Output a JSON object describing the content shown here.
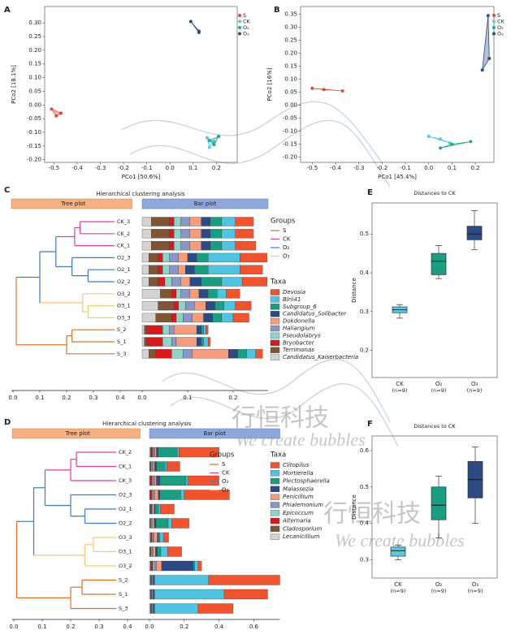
{
  "watermark": {
    "cn": "行恒科技",
    "en": "We create bubbles"
  },
  "chart_data": [
    {
      "type": "scatter",
      "label": "A",
      "xlabel": "PCo1 [50.6%]",
      "ylabel": "PCo2 [18.1%]",
      "xlim": [
        -0.54,
        0.29
      ],
      "ylim": [
        -0.21,
        0.36
      ],
      "xticks": [
        -0.5,
        -0.4,
        -0.3,
        -0.2,
        -0.1,
        {
          "value": 0,
          "label": "0.0"
        },
        0.1,
        0.2
      ],
      "yticks": [
        {
          "value": 0.3,
          "label": "0.30"
        },
        0.25,
        {
          "value": 0.2,
          "label": "0.20"
        },
        0.15,
        {
          "value": 0.1,
          "label": "0.10"
        },
        0.05,
        {
          "value": 0,
          "label": "0.00"
        },
        -0.05,
        {
          "value": -0.1,
          "label": "-0.10"
        },
        -0.15,
        {
          "value": -0.2,
          "label": "-0.20"
        }
      ],
      "series": [
        {
          "name": "S",
          "color": "#e8472f",
          "x": [
            -0.51,
            -0.49,
            -0.47
          ],
          "y": [
            -0.015,
            -0.04,
            -0.03
          ]
        },
        {
          "name": "CK",
          "color": "#5bc8e0",
          "x": [
            0.16,
            0.17,
            0.19
          ],
          "y": [
            -0.12,
            -0.155,
            -0.135
          ]
        },
        {
          "name": "O₂",
          "color": "#20a98c",
          "x": [
            0.17,
            0.19,
            0.21
          ],
          "y": [
            -0.13,
            -0.145,
            -0.115
          ]
        },
        {
          "name": "O₃",
          "color": "#2b4b8a",
          "x": [
            0.09,
            0.125,
            0.125
          ],
          "y": [
            0.305,
            0.27,
            0.265
          ]
        }
      ]
    },
    {
      "type": "scatter",
      "label": "B",
      "xlabel": "PCo1 [45.4%]",
      "ylabel": "PCo2 [16%]",
      "xlim": [
        -0.55,
        0.28
      ],
      "ylim": [
        -0.22,
        0.38
      ],
      "xticks": [
        -0.5,
        -0.4,
        -0.3,
        -0.2,
        -0.1,
        {
          "value": 0,
          "label": "0.0"
        },
        0.1,
        0.2
      ],
      "yticks": [
        0.35,
        {
          "value": 0.3,
          "label": "0.30"
        },
        0.25,
        {
          "value": 0.2,
          "label": "0.20"
        },
        0.15,
        {
          "value": 0.1,
          "label": "0.10"
        },
        0.05,
        {
          "value": 0,
          "label": "0.00"
        },
        -0.05,
        {
          "value": -0.1,
          "label": "-0.10"
        },
        -0.15,
        {
          "value": -0.2,
          "label": "-0.20"
        }
      ],
      "series": [
        {
          "name": "S",
          "color": "#e8472f",
          "x": [
            -0.5,
            -0.45,
            -0.37
          ],
          "y": [
            0.065,
            0.06,
            0.055
          ]
        },
        {
          "name": "CK",
          "color": "#5bc8e0",
          "x": [
            0,
            0.05,
            0.09
          ],
          "y": [
            -0.12,
            -0.13,
            -0.145
          ]
        },
        {
          "name": "O₂",
          "color": "#20a98c",
          "x": [
            0.05,
            0.1,
            0.18
          ],
          "y": [
            -0.165,
            -0.15,
            -0.14
          ]
        },
        {
          "name": "O₃",
          "color": "#2b4b8a",
          "x": [
            0.23,
            0.255,
            0.26
          ],
          "y": [
            0.135,
            0.345,
            0.18
          ]
        }
      ]
    },
    {
      "type": "dendro_bar",
      "label": "C",
      "title": "Hierarchical clustering analysis",
      "tree_header": "Tree plot",
      "bar_header": "Bar plot",
      "samples": [
        "CK_3",
        "CK_2",
        "CK_1",
        "O2_3",
        "O2_1",
        "O2_2",
        "O3_2",
        "O3_1",
        "O3_3",
        "S_2",
        "S_1",
        "S_3"
      ],
      "leaf_colors": [
        "#e0409a",
        "#e0409a",
        "#e0409a",
        "#3b7bc8",
        "#3b7bc8",
        "#3b7bc8",
        "#f5c979",
        "#f5c979",
        "#f5c979",
        "#d9732c",
        "#d9732c",
        "#d9732c"
      ],
      "merges": [
        [
          0,
          1,
          0.25
        ],
        [
          12,
          2,
          0.23
        ],
        [
          4,
          5,
          0.28
        ],
        [
          3,
          14,
          0.22
        ],
        [
          13,
          15,
          0.16
        ],
        [
          7,
          8,
          0.28
        ],
        [
          6,
          17,
          0.26
        ],
        [
          9,
          10,
          0.22
        ],
        [
          19,
          11,
          0.2
        ],
        [
          18,
          16,
          0.1
        ],
        [
          21,
          20,
          0.012
        ]
      ],
      "tree_xlim": [
        0,
        0.45
      ],
      "tree_xticks": [
        {
          "value": 0,
          "label": "0.0"
        },
        0.1,
        0.2,
        0.3,
        0.4
      ],
      "xlim": [
        0,
        0.277
      ],
      "xticks": [
        {
          "value": 0,
          "label": "0.0"
        },
        0.1,
        0.2
      ],
      "groups_title": "Groups",
      "groups": [
        {
          "name": "S",
          "color": "#d9732c"
        },
        {
          "name": "CK",
          "color": "#e0409a"
        },
        {
          "name": "O₂",
          "color": "#3b7bc8"
        },
        {
          "name": "O₃",
          "color": "#f5c979"
        }
      ],
      "taxa_title": "Taxa",
      "series": [
        {
          "name": "Devosia",
          "color": "#f0532e",
          "values": [
            0.04,
            0.04,
            0.045,
            0.06,
            0.05,
            0.055,
            0.03,
            0.035,
            0.035,
            0.005,
            0.005,
            0.015
          ]
        },
        {
          "name": "Blrii41",
          "color": "#4fc3e0",
          "values": [
            0.03,
            0.03,
            0.03,
            0.07,
            0.07,
            0.045,
            0.02,
            0.025,
            0.025,
            0.005,
            0.01,
            0.02
          ]
        },
        {
          "name": "Subgroup_6",
          "color": "#1a9e82",
          "values": [
            0.025,
            0.025,
            0.025,
            0.025,
            0.03,
            0.045,
            0.02,
            0.02,
            0.02,
            0.005,
            0.005,
            0.02
          ]
        },
        {
          "name": "Candidatus_Solibacter",
          "color": "#2d4a85",
          "values": [
            0.02,
            0.02,
            0.02,
            0.02,
            0.02,
            0.025,
            0.02,
            0.02,
            0.02,
            0.01,
            0.01,
            0.02
          ]
        },
        {
          "name": "Dokdonella",
          "color": "#f59c7c",
          "values": [
            0.025,
            0.025,
            0.025,
            0.02,
            0.015,
            0.02,
            0.02,
            0.025,
            0.025,
            0.05,
            0.045,
            0.08
          ]
        },
        {
          "name": "Haliangium",
          "color": "#8a95c8",
          "values": [
            0.02,
            0.02,
            0.02,
            0.02,
            0.02,
            0.02,
            0.02,
            0.02,
            0.02,
            0.01,
            0.01,
            0.02
          ]
        },
        {
          "name": "Pseudolabrys",
          "color": "#8fd3c6",
          "values": [
            0.015,
            0.015,
            0.015,
            0.015,
            0.015,
            0.015,
            0.01,
            0.015,
            0.015,
            0.015,
            0.02,
            0.025
          ]
        },
        {
          "name": "Bryobacter",
          "color": "#d7191c",
          "values": [
            0.01,
            0.01,
            0.01,
            0.01,
            0.01,
            0.015,
            0.01,
            0.01,
            0.01,
            0.035,
            0.035,
            0.035
          ]
        },
        {
          "name": "Terrimonas",
          "color": "#7f5535",
          "values": [
            0.04,
            0.04,
            0.04,
            0.02,
            0.02,
            0.02,
            0.025,
            0.035,
            0.035,
            0.005,
            0.005,
            0.015
          ]
        },
        {
          "name": "Candidatus_Kaiserbacteria",
          "color": "#d3d3d3",
          "values": [
            0.02,
            0.02,
            0.02,
            0.015,
            0.015,
            0.015,
            0.04,
            0.035,
            0.03,
            0.005,
            0.005,
            0.015
          ]
        }
      ]
    },
    {
      "type": "dendro_bar",
      "label": "D",
      "title": "Hierarchical clustering analysis",
      "tree_header": "Tree plot",
      "bar_header": "Bar plot",
      "samples": [
        "CK_2",
        "CK_1",
        "CK_3",
        "O2_3",
        "O2_1",
        "O2_2",
        "O3_3",
        "O3_1",
        "O3_2",
        "S_2",
        "S_1",
        "S_3"
      ],
      "leaf_colors": [
        "#e0409a",
        "#e0409a",
        "#e0409a",
        "#3b7bc8",
        "#3b7bc8",
        "#3b7bc8",
        "#f5c979",
        "#f5c979",
        "#f5c979",
        "#d9732c",
        "#d9732c",
        "#d9732c"
      ],
      "merges": [
        [
          0,
          1,
          0.22
        ],
        [
          12,
          2,
          0.2
        ],
        [
          4,
          5,
          0.25
        ],
        [
          3,
          14,
          0.2
        ],
        [
          13,
          15,
          0.11
        ],
        [
          6,
          7,
          0.28
        ],
        [
          17,
          8,
          0.25
        ],
        [
          9,
          10,
          0.24
        ],
        [
          19,
          11,
          0.2
        ],
        [
          18,
          16,
          0.07
        ],
        [
          21,
          20,
          0.01
        ]
      ],
      "tree_xlim": [
        0,
        0.45
      ],
      "tree_xticks": [
        {
          "value": 0,
          "label": "0.0"
        },
        0.1,
        0.2,
        0.3,
        0.4
      ],
      "xlim": [
        0,
        0.75
      ],
      "xticks": [
        {
          "value": 0,
          "label": "0.0"
        },
        0.2,
        0.4,
        0.6
      ],
      "groups_title": "Groups",
      "groups": [
        {
          "name": "S",
          "color": "#d9732c"
        },
        {
          "name": "CK",
          "color": "#e0409a"
        },
        {
          "name": "O₂",
          "color": "#3b7bc8"
        },
        {
          "name": "O₃",
          "color": "#f5c979"
        }
      ],
      "taxa_title": "Taxa",
      "series": [
        {
          "name": "Clitopilus",
          "color": "#f0532e",
          "values": [
            0.23,
            0.075,
            0.18,
            0.26,
            0.08,
            0.1,
            0.03,
            0.08,
            0.02,
            0.41,
            0.25,
            0.2
          ]
        },
        {
          "name": "Mortierella",
          "color": "#4fc3e0",
          "values": [
            0.01,
            0.01,
            0.01,
            0.02,
            0.01,
            0.02,
            0.02,
            0.04,
            0.02,
            0.31,
            0.4,
            0.25
          ]
        },
        {
          "name": "Plectosphaerella",
          "color": "#1a9e82",
          "values": [
            0.11,
            0.05,
            0.15,
            0.12,
            0.02,
            0.07,
            0.01,
            0.02,
            0.01,
            0.005,
            0.005,
            0.005
          ]
        },
        {
          "name": "Malassezia",
          "color": "#2d4a85",
          "values": [
            0.01,
            0.01,
            0.02,
            0.01,
            0.005,
            0.01,
            0.005,
            0.01,
            0.18,
            0.005,
            0.005,
            0.005
          ]
        },
        {
          "name": "Penicillium",
          "color": "#f59c7c",
          "values": [
            0.01,
            0.01,
            0.01,
            0.02,
            0.01,
            0.01,
            0.02,
            0.015,
            0.03,
            0.005,
            0.005,
            0.005
          ]
        },
        {
          "name": "Phialemonium",
          "color": "#8a95c8",
          "values": [
            0.005,
            0.005,
            0.01,
            0.01,
            0.005,
            0.005,
            0.005,
            0.005,
            0.01,
            0.0025,
            0.0025,
            0.0025
          ]
        },
        {
          "name": "Epicoccum",
          "color": "#8fd3c6",
          "values": [
            0.005,
            0.005,
            0.005,
            0.005,
            0.0025,
            0.005,
            0.005,
            0.005,
            0.01,
            0.0025,
            0.0025,
            0.0025
          ]
        },
        {
          "name": "Alternaria",
          "color": "#d7191c",
          "values": [
            0.01,
            0.005,
            0.01,
            0.01,
            0.005,
            0.0025,
            0.005,
            0.005,
            0.01,
            0.0025,
            0.0025,
            0.0025
          ]
        },
        {
          "name": "Cladosporium",
          "color": "#7f5535",
          "values": [
            0.005,
            0.0025,
            0.0025,
            0.0025,
            0.0025,
            0.0025,
            0.005,
            0.0025,
            0.005,
            0.0025,
            0.0025,
            0.0025
          ]
        },
        {
          "name": "Lecanicillium",
          "color": "#d3d3d3",
          "values": [
            0.005,
            0.0025,
            0.0025,
            0.0025,
            0.0025,
            0.0025,
            0.005,
            0.0025,
            0.005,
            0.005,
            0.005,
            0.005
          ]
        }
      ]
    },
    {
      "type": "box",
      "label": "E",
      "title": "Distances to CK",
      "ylabel": "Distance",
      "categories": [
        "CK",
        "O₂",
        "O₃"
      ],
      "n_labels": [
        "(n=9)",
        "(n=9)",
        "(n=9)"
      ],
      "colors": [
        "#5bc8e0",
        "#1a9e82",
        "#2d4a85"
      ],
      "ylim": [
        0.13,
        0.58
      ],
      "yticks": [
        0.2,
        0.3,
        0.4,
        0.5
      ],
      "whisker_low": [
        0.283,
        0.385,
        0.46
      ],
      "q1": [
        0.297,
        0.395,
        0.485
      ],
      "median": [
        0.305,
        0.43,
        0.5
      ],
      "q3": [
        0.312,
        0.45,
        0.52
      ],
      "whisker_high": [
        0.318,
        0.47,
        0.56
      ]
    },
    {
      "type": "box",
      "label": "F",
      "title": "Distances to CK",
      "ylabel": "Distance",
      "categories": [
        "CK",
        "O₂",
        "O₃"
      ],
      "n_labels": [
        "(n=9)",
        "(n=9)",
        "(n=9)"
      ],
      "colors": [
        "#5bc8e0",
        "#1a9e82",
        "#2d4a85"
      ],
      "ylim": [
        0.25,
        0.64
      ],
      "yticks": [
        0.3,
        0.4,
        0.5,
        0.6
      ],
      "whisker_low": [
        0.3,
        0.36,
        0.4
      ],
      "q1": [
        0.31,
        0.41,
        0.47
      ],
      "median": [
        0.325,
        0.45,
        0.52
      ],
      "q3": [
        0.335,
        0.5,
        0.57
      ],
      "whisker_high": [
        0.34,
        0.53,
        0.61
      ]
    }
  ]
}
